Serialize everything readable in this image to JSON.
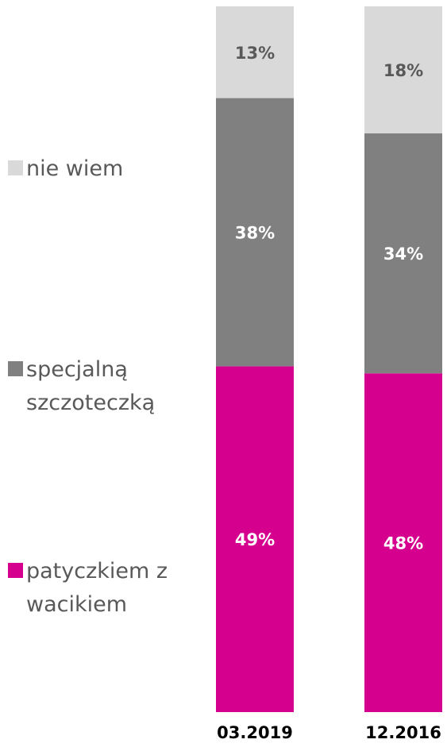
{
  "chart_data": {
    "type": "stacked_bar",
    "categories": [
      "03.2019",
      "12.2016"
    ],
    "series": [
      {
        "name": "patyczkiem z wacikiem",
        "color": "#d6008f",
        "values": [
          49,
          48
        ],
        "value_labels": [
          "49%",
          "48%"
        ]
      },
      {
        "name": "specjalną szczoteczką",
        "color": "#808080",
        "values": [
          38,
          34
        ],
        "value_labels": [
          "38%",
          "34%"
        ]
      },
      {
        "name": "nie wiem",
        "color": "#d9d9d9",
        "values": [
          13,
          18
        ],
        "value_labels": [
          "13%",
          "18%"
        ]
      }
    ],
    "ylim": [
      0,
      100
    ],
    "legend": "left"
  }
}
